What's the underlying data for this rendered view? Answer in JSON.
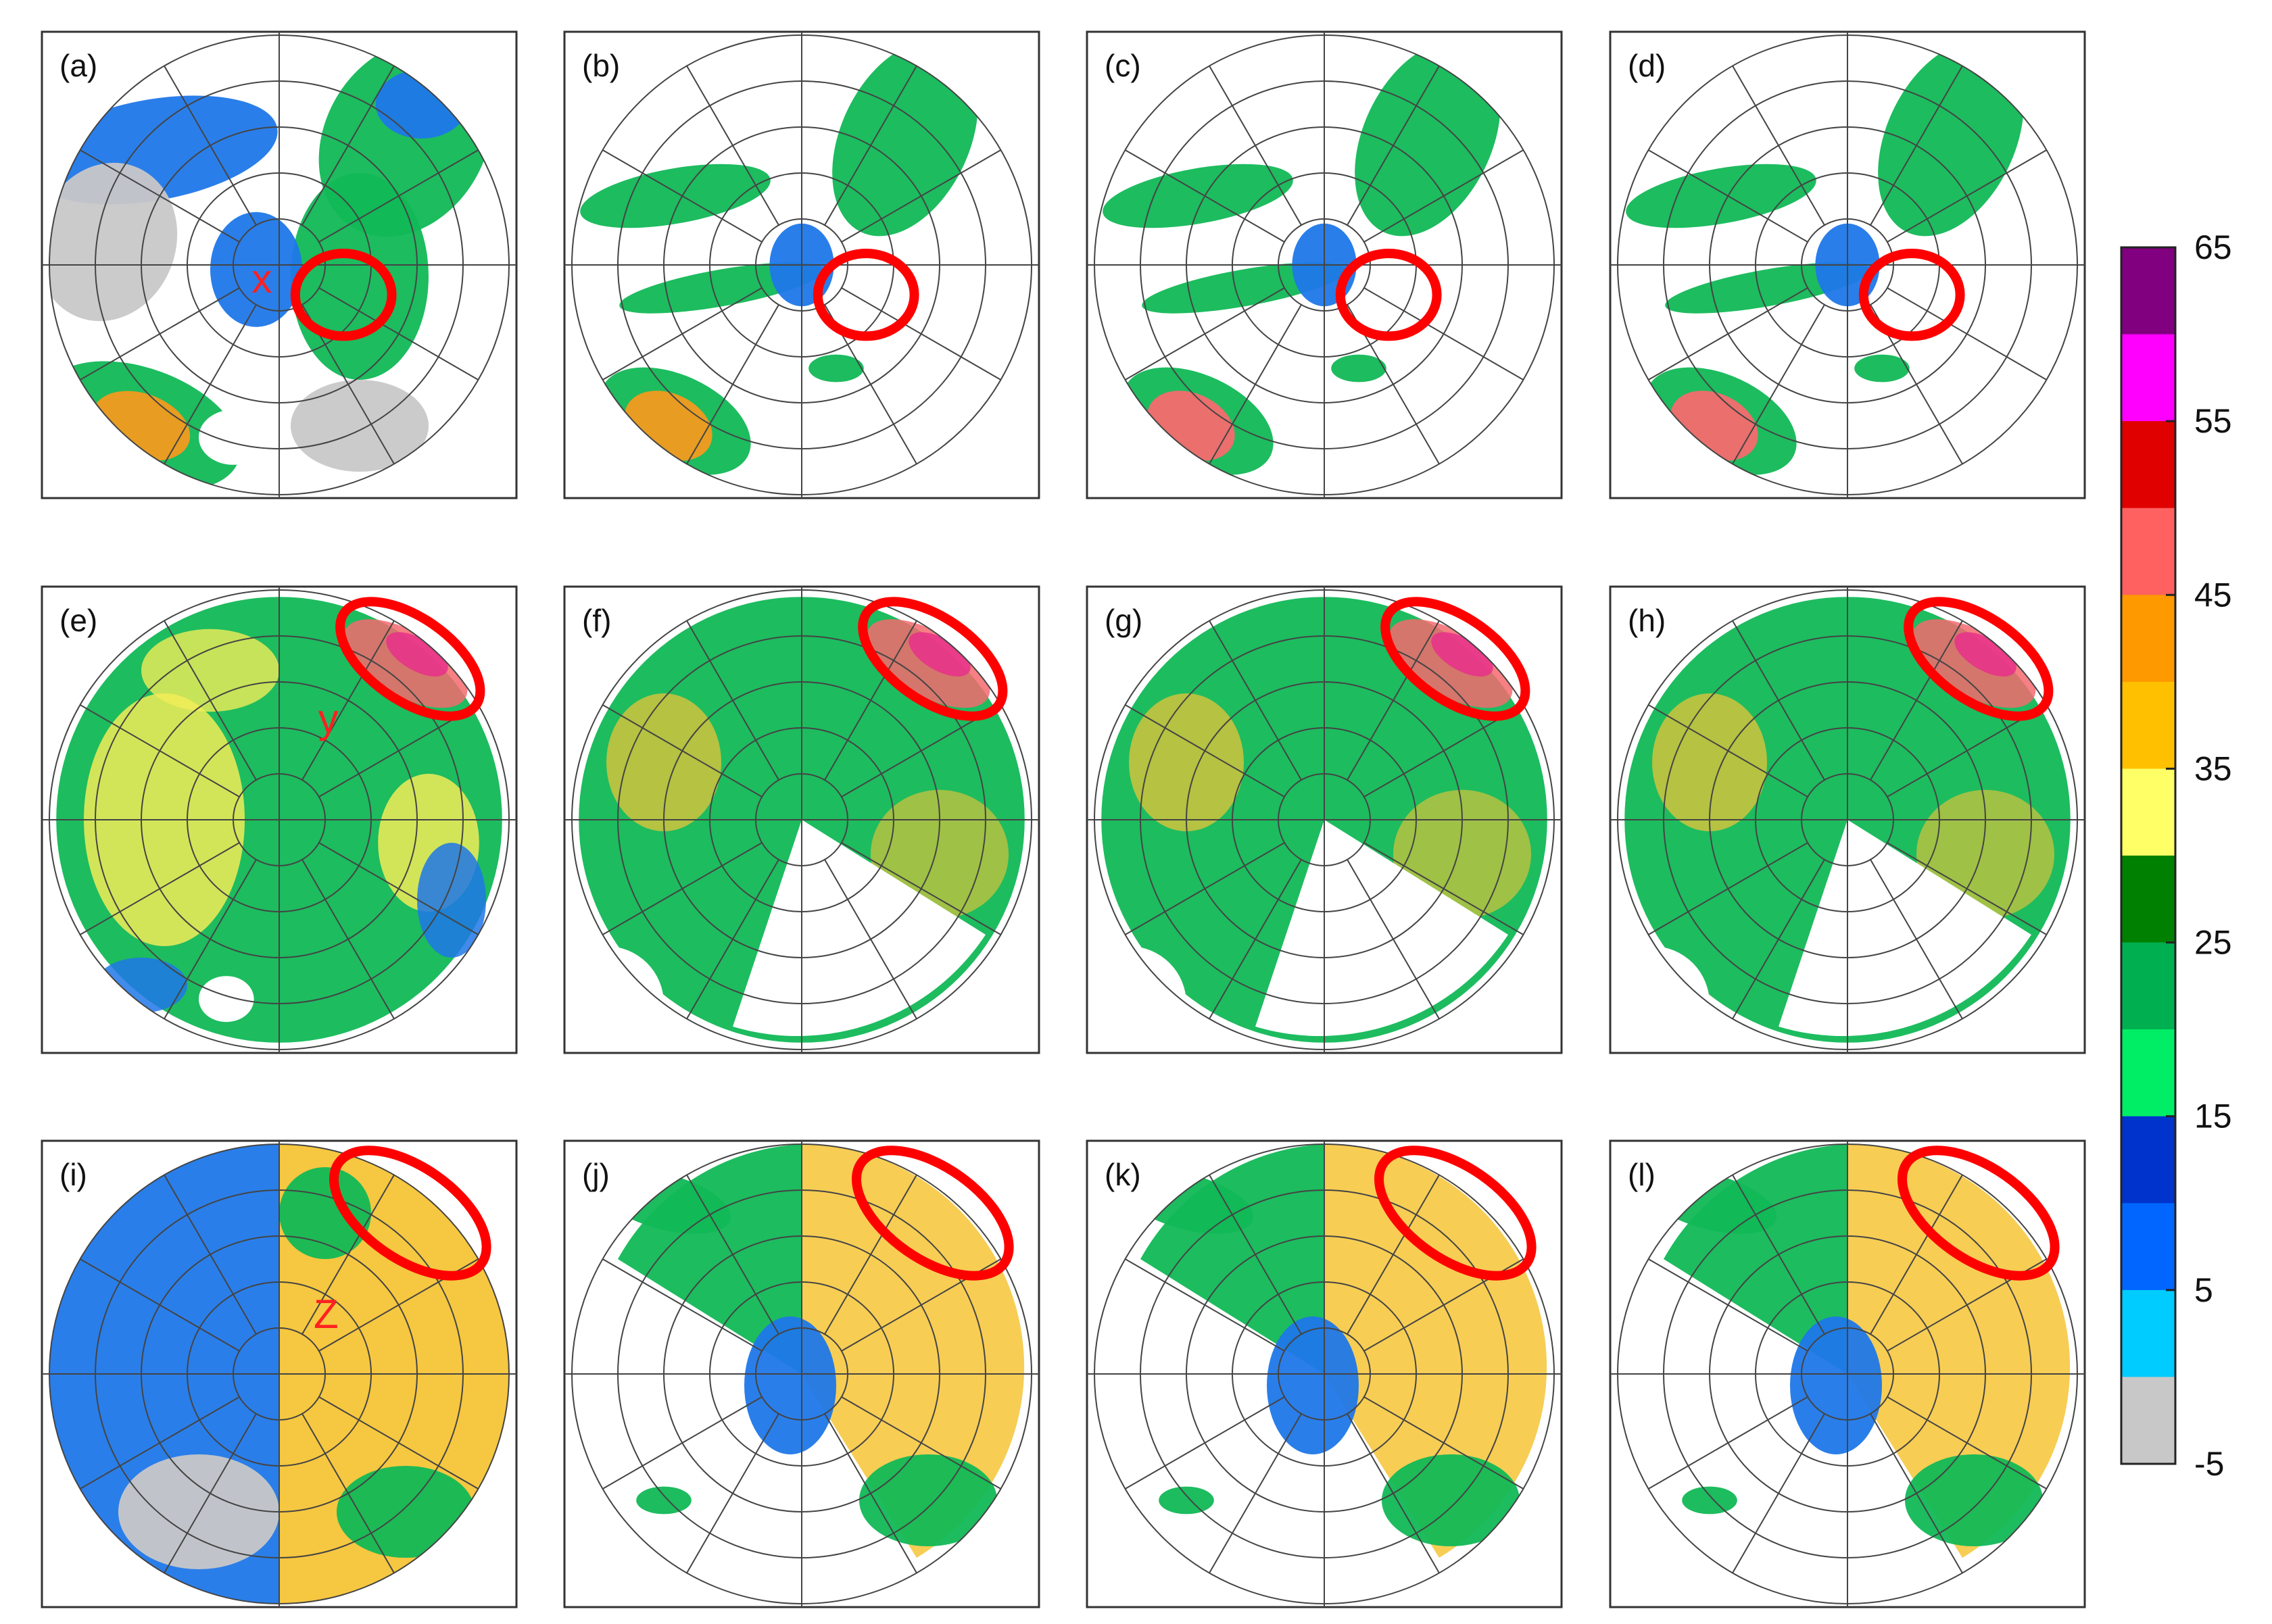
{
  "figure": {
    "panels": [
      {
        "label": "(a)",
        "annotation": "x",
        "row": 0
      },
      {
        "label": "(b)",
        "annotation": "",
        "row": 0
      },
      {
        "label": "(c)",
        "annotation": "",
        "row": 0
      },
      {
        "label": "(d)",
        "annotation": "",
        "row": 0
      },
      {
        "label": "(e)",
        "annotation": "y",
        "row": 1
      },
      {
        "label": "(f)",
        "annotation": "",
        "row": 1
      },
      {
        "label": "(g)",
        "annotation": "",
        "row": 1
      },
      {
        "label": "(h)",
        "annotation": "",
        "row": 1
      },
      {
        "label": "(i)",
        "annotation": "Z",
        "row": 2
      },
      {
        "label": "(j)",
        "annotation": "",
        "row": 2
      },
      {
        "label": "(k)",
        "annotation": "",
        "row": 2
      },
      {
        "label": "(l)",
        "annotation": "",
        "row": 2
      }
    ],
    "colorbar": {
      "tick_labels": [
        "65",
        "55",
        "45",
        "35",
        "25",
        "15",
        "5",
        "-5"
      ],
      "colors": [
        "#800080",
        "#ff00ff",
        "#e00000",
        "#ff6060",
        "#ff9900",
        "#ffc000",
        "#ffff66",
        "#008000",
        "#00b050",
        "#00ee66",
        "#0033cc",
        "#0066ff",
        "#00ccff",
        "#c8c8c8"
      ]
    },
    "highlight_color": "#ff0000",
    "annotation_color": "#ff2020"
  }
}
